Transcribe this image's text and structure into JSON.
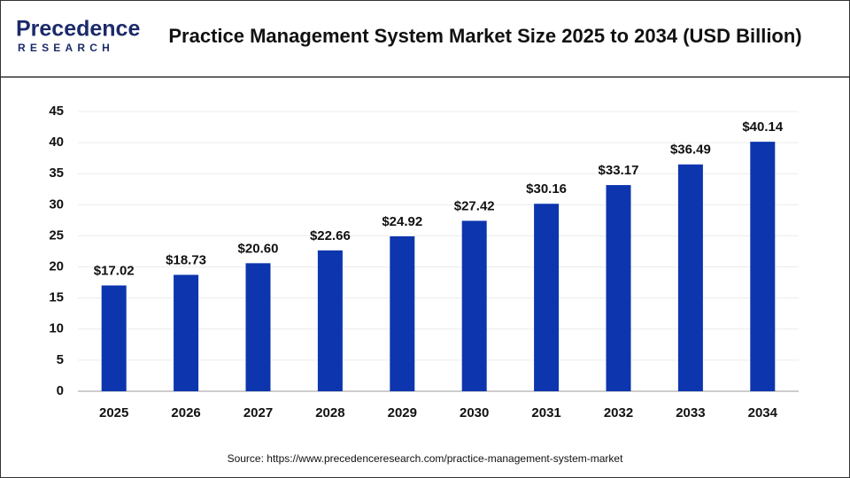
{
  "logo": {
    "name": "Precedence",
    "tagline": "RESEARCH"
  },
  "chart_data": {
    "type": "bar",
    "title": "Practice Management System Market Size 2025 to 2034 (USD Billion)",
    "categories": [
      "2025",
      "2026",
      "2027",
      "2028",
      "2029",
      "2030",
      "2031",
      "2032",
      "2033",
      "2034"
    ],
    "values": [
      17.02,
      18.73,
      20.6,
      22.66,
      24.92,
      27.42,
      30.16,
      33.17,
      36.49,
      40.14
    ],
    "value_labels": [
      "$17.02",
      "$18.73",
      "$20.60",
      "$22.66",
      "$24.92",
      "$27.42",
      "$30.16",
      "$33.17",
      "$36.49",
      "$40.14"
    ],
    "color": "#0d35ae",
    "ylim": [
      0,
      45
    ],
    "yticks": [
      0,
      5,
      10,
      15,
      20,
      25,
      30,
      35,
      40,
      45
    ],
    "grid": true,
    "source": "Source: https://www.precedenceresearch.com/practice-management-system-market"
  }
}
